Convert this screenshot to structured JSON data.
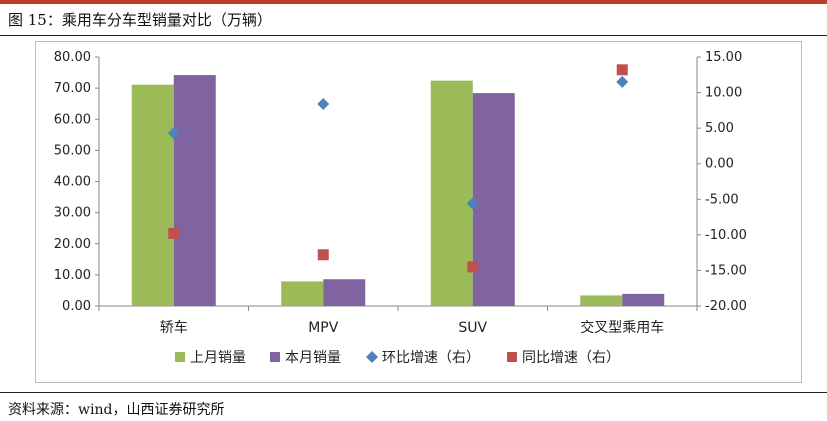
{
  "figure_title": "图 15：乘用车分车型销量对比（万辆）",
  "source": "资料来源：wind，山西证券研究所",
  "colors": {
    "s1": "#9bbb59",
    "s2": "#8064a2",
    "s3": "#4f81bd",
    "s4": "#c0504d",
    "accent": "#c0392b"
  },
  "chart_data": {
    "type": "bar",
    "categories": [
      "轿车",
      "MPV",
      "SUV",
      "交叉型乘用车"
    ],
    "left_axis": {
      "min": 0,
      "max": 80,
      "step": 10,
      "tick_labels": [
        "0.00",
        "10.00",
        "20.00",
        "30.00",
        "40.00",
        "50.00",
        "60.00",
        "70.00",
        "80.00"
      ]
    },
    "right_axis": {
      "min": -20,
      "max": 15,
      "step": 5,
      "tick_labels": [
        "-20.00",
        "-15.00",
        "-10.00",
        "-5.00",
        "0.00",
        "5.00",
        "10.00",
        "15.00"
      ]
    },
    "series": [
      {
        "name": "上月销量",
        "type": "bar",
        "axis": "left",
        "color": "#9bbb59",
        "values": [
          71.1,
          7.9,
          72.4,
          3.4
        ]
      },
      {
        "name": "本月销量",
        "type": "bar",
        "axis": "left",
        "color": "#8064a2",
        "values": [
          74.2,
          8.6,
          68.4,
          3.9
        ]
      },
      {
        "name": "环比增速（右）",
        "type": "scatter",
        "marker": "diamond",
        "axis": "right",
        "color": "#4f81bd",
        "values": [
          4.3,
          8.4,
          -5.6,
          11.5
        ]
      },
      {
        "name": "同比增速（右）",
        "type": "scatter",
        "marker": "square",
        "axis": "right",
        "color": "#c0504d",
        "values": [
          -9.8,
          -12.8,
          -14.5,
          13.2
        ]
      }
    ],
    "legend_position": "bottom",
    "grid": false
  }
}
